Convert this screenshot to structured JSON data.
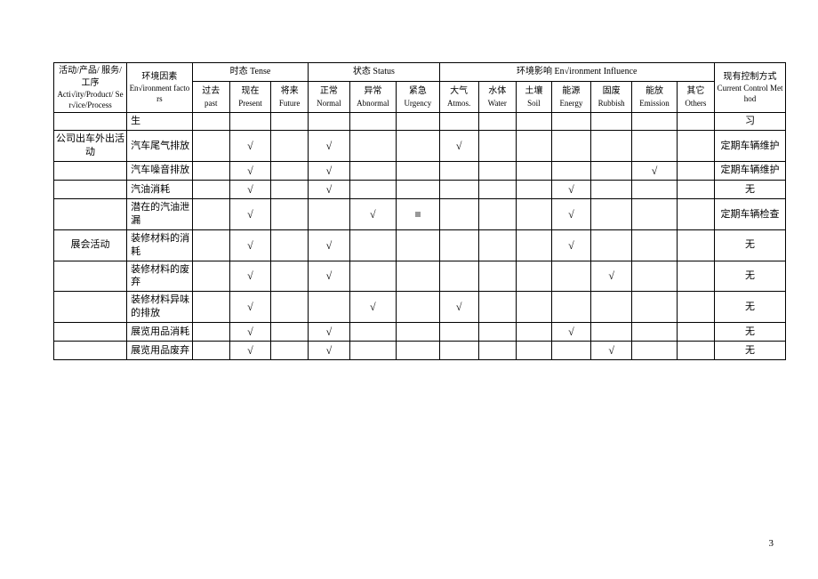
{
  "headers": {
    "activity": {
      "cn": "活动/产品/\n服务/工序",
      "en": "Acti√ity/Product/\nSer√ice/Process"
    },
    "factor": {
      "cn": "环境因素",
      "en": "En√ironment\nfactors"
    },
    "tense": {
      "label": "时态 Tense",
      "past": {
        "cn": "过去",
        "en": "past"
      },
      "present": {
        "cn": "现在",
        "en": "Present"
      },
      "future": {
        "cn": "将来",
        "en": "Future"
      }
    },
    "status": {
      "label": "状态 Status",
      "normal": {
        "cn": "正常",
        "en": "Normal"
      },
      "abnormal": {
        "cn": "异常",
        "en": "Abnormal"
      },
      "urgency": {
        "cn": "紧急",
        "en": "Urgency"
      }
    },
    "influence": {
      "label": "环境影响 En√ironment Influence",
      "atmos": {
        "cn": "大气",
        "en": "Atmos."
      },
      "water": {
        "cn": "水体",
        "en": "Water"
      },
      "soil": {
        "cn": "土壤",
        "en": "Soil"
      },
      "energy": {
        "cn": "能源",
        "en": "Energy"
      },
      "rubbish": {
        "cn": "固废",
        "en": "Rubbish"
      },
      "emission": {
        "cn": "能放",
        "en": "Emission"
      },
      "others": {
        "cn": "其它",
        "en": "Others"
      }
    },
    "control": {
      "cn": "现有控制方式",
      "en": "Current Control\nMethod"
    }
  },
  "check": "√",
  "rows": [
    {
      "activity": "",
      "factor": "生",
      "marks": [
        "",
        "",
        "",
        "",
        "",
        "",
        "",
        "",
        "",
        "",
        "",
        "",
        ""
      ],
      "control": "习"
    },
    {
      "activity": "公司出车外出活动",
      "factor": "汽车尾气排放",
      "marks": [
        "",
        "√",
        "",
        "√",
        "",
        "",
        "√",
        "",
        "",
        "",
        "",
        "",
        ""
      ],
      "control": "定期车辆维护"
    },
    {
      "activity": "",
      "factor": "汽车噪音排放",
      "marks": [
        "",
        "√",
        "",
        "√",
        "",
        "",
        "",
        "",
        "",
        "",
        "",
        "√",
        ""
      ],
      "control": "定期车辆维护"
    },
    {
      "activity": "",
      "factor": "汽油消耗",
      "marks": [
        "",
        "√",
        "",
        "√",
        "",
        "",
        "",
        "",
        "",
        "√",
        "",
        "",
        ""
      ],
      "control": "无"
    },
    {
      "activity": "",
      "factor": "潜在的汽油泄漏",
      "marks": [
        "",
        "√",
        "",
        "",
        "√",
        "dot",
        "",
        "",
        "",
        "√",
        "",
        "",
        ""
      ],
      "control": "定期车辆检查"
    },
    {
      "activity": "展会活动",
      "factor": "装修材料的消耗",
      "marks": [
        "",
        "√",
        "",
        "√",
        "",
        "",
        "",
        "",
        "",
        "√",
        "",
        "",
        ""
      ],
      "control": "无"
    },
    {
      "activity": "",
      "factor": "装修材料的废弃",
      "marks": [
        "",
        "√",
        "",
        "√",
        "",
        "",
        "",
        "",
        "",
        "",
        "√",
        "",
        ""
      ],
      "control": "无"
    },
    {
      "activity": "",
      "factor": "装修材料异味的排放",
      "marks": [
        "",
        "√",
        "",
        "",
        "√",
        "",
        "√",
        "",
        "",
        "",
        "",
        "",
        ""
      ],
      "control": "无"
    },
    {
      "activity": "",
      "factor": "展览用品消耗",
      "marks": [
        "",
        "√",
        "",
        "√",
        "",
        "",
        "",
        "",
        "",
        "√",
        "",
        "",
        ""
      ],
      "control": "无"
    },
    {
      "activity": "",
      "factor": "展览用品废弃",
      "marks": [
        "",
        "√",
        "",
        "√",
        "",
        "",
        "",
        "",
        "",
        "",
        "√",
        "",
        ""
      ],
      "control": "无"
    }
  ],
  "page_number": "3"
}
